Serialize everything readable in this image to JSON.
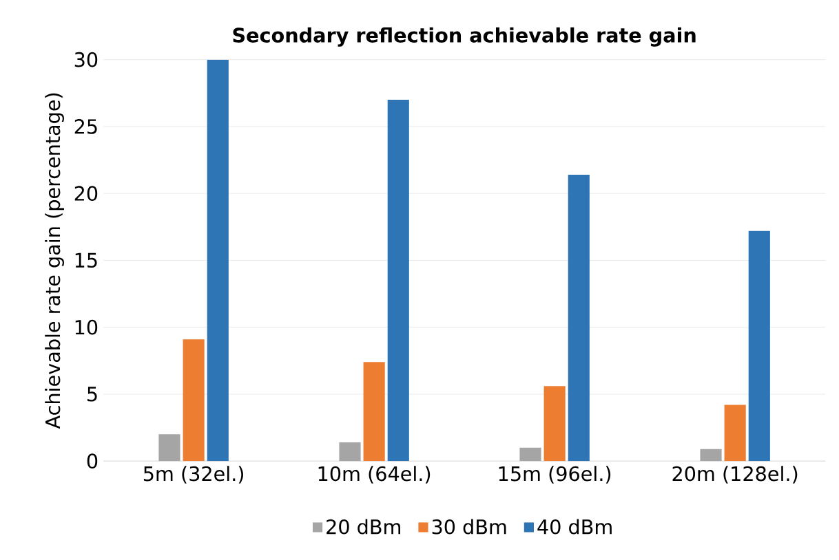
{
  "chart_data": {
    "type": "bar",
    "title": "Secondary reflection achievable rate gain",
    "ylabel": "Achievable rate gain (percentage)",
    "categories": [
      "5m (32el.)",
      "10m (64el.)",
      "15m (96el.)",
      "20m (128el.)"
    ],
    "series": [
      {
        "name": "20 dBm",
        "color": "#a5a5a5",
        "values": [
          2.0,
          1.4,
          1.0,
          0.9
        ]
      },
      {
        "name": "30 dBm",
        "color": "#ed7d31",
        "values": [
          9.1,
          7.4,
          5.6,
          4.2
        ]
      },
      {
        "name": "40 dBm",
        "color": "#2e75b6",
        "values": [
          30.0,
          27.0,
          21.4,
          17.2
        ]
      }
    ],
    "ylim": [
      0,
      30
    ],
    "yticks": [
      0,
      5,
      10,
      15,
      20,
      25,
      30
    ],
    "grid": "y",
    "legend": "bottom"
  }
}
